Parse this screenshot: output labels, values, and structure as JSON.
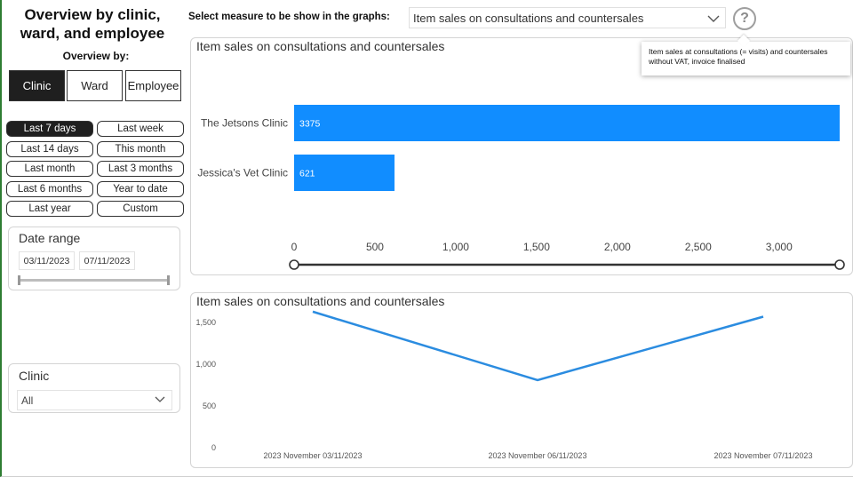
{
  "sidebar": {
    "title_line1": "Overview by clinic,",
    "title_line2": "ward, and employee",
    "overview_by_label": "Overview by:",
    "modes": [
      {
        "label": "Clinic",
        "active": true
      },
      {
        "label": "Ward",
        "active": false
      },
      {
        "label": "Employee",
        "active": false
      }
    ],
    "periods": [
      {
        "label": "Last 7 days",
        "active": true
      },
      {
        "label": "Last week",
        "active": false
      },
      {
        "label": "Last 14 days",
        "active": false
      },
      {
        "label": "This month",
        "active": false
      },
      {
        "label": "Last month",
        "active": false
      },
      {
        "label": "Last 3 months",
        "active": false
      },
      {
        "label": "Last 6 months",
        "active": false
      },
      {
        "label": "Year to date",
        "active": false
      },
      {
        "label": "Last year",
        "active": false
      },
      {
        "label": "Custom",
        "active": false
      }
    ],
    "date_range": {
      "title": "Date range",
      "start": "03/11/2023",
      "end": "07/11/2023"
    },
    "clinic_filter": {
      "title": "Clinic",
      "value": "All"
    }
  },
  "header": {
    "measure_label": "Select measure to be show in the graphs:",
    "measure_value": "Item sales on consultations and countersales",
    "help_icon_text": "?"
  },
  "tooltip": {
    "text": "Item sales at consultations (= visits) and countersales without VAT, invoice finalised"
  },
  "colors": {
    "accent": "#118dff",
    "line": "#2b8ce0",
    "active_button": "#1f1f1f"
  },
  "chart_data": [
    {
      "type": "bar",
      "orientation": "horizontal",
      "title": "Item sales on consultations and countersales",
      "categories": [
        "The Jetsons Clinic",
        "Jessica's Vet Clinic"
      ],
      "values": [
        3375,
        621
      ],
      "data_labels": [
        "3375",
        "621"
      ],
      "xlim": [
        0,
        3375
      ],
      "x_ticks": [
        0,
        500,
        1000,
        1500,
        2000,
        2500,
        3000
      ],
      "x_tick_labels": [
        "0",
        "500",
        "1,000",
        "1,500",
        "2,000",
        "2,500",
        "3,000"
      ],
      "grid": false,
      "range_slider": true
    },
    {
      "type": "line",
      "title": "Item sales on consultations and countersales",
      "x": [
        "2023 November 03/11/2023",
        "2023 November 06/11/2023",
        "2023 November 07/11/2023"
      ],
      "values": [
        1630,
        810,
        1570
      ],
      "ylim": [
        0,
        1650
      ],
      "y_ticks": [
        0,
        500,
        1000,
        1500
      ],
      "y_tick_labels": [
        "0",
        "500",
        "1,000",
        "1,500"
      ],
      "grid": false
    }
  ]
}
